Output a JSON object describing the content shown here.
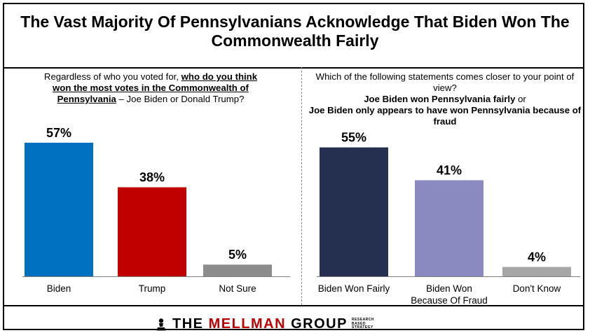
{
  "title": "The Vast Majority Of Pennsylvanians Acknowledge That Biden Won The Commonwealth Fairly",
  "left_question": {
    "part1": "Regardless of who you voted for, ",
    "part2": "who do you think won the most votes in the Commonwealth of Pennsylvania",
    "part3": " – Joe Biden or Donald Trump?"
  },
  "right_question": {
    "line1": "Which of the following statements comes closer to your point of view?",
    "opt1": "Joe Biden won Pennsylvania fairly",
    "or": " or",
    "opt2": "Joe Biden only appears to have won Pennsylvania because of fraud"
  },
  "footer": {
    "brand_prefix": "THE ",
    "brand_accent": "MELLMAN",
    "brand_suffix": " GROUP",
    "tagline": [
      "RESEARCH",
      "BASED",
      "STRATEGY"
    ]
  },
  "chart_data": [
    {
      "type": "bar",
      "categories": [
        "Biden",
        "Trump",
        "Not Sure"
      ],
      "values": [
        57,
        38,
        5
      ],
      "data_labels": [
        "57%",
        "38%",
        "5%"
      ],
      "colors": [
        "#0070c0",
        "#c00000",
        "#8c8c8c"
      ],
      "ylim": [
        0,
        60
      ]
    },
    {
      "type": "bar",
      "categories": [
        "Biden Won Fairly",
        "Biden Won Because Of Fraud",
        "Don't Know"
      ],
      "category_lines": [
        [
          "Biden Won Fairly"
        ],
        [
          "Biden Won",
          "Because Of Fraud"
        ],
        [
          "Don't Know"
        ]
      ],
      "values": [
        55,
        41,
        4
      ],
      "data_labels": [
        "55%",
        "41%",
        "4%"
      ],
      "colors": [
        "#252f4f",
        "#8a8ac0",
        "#a6a6a6"
      ],
      "ylim": [
        0,
        60
      ]
    }
  ]
}
